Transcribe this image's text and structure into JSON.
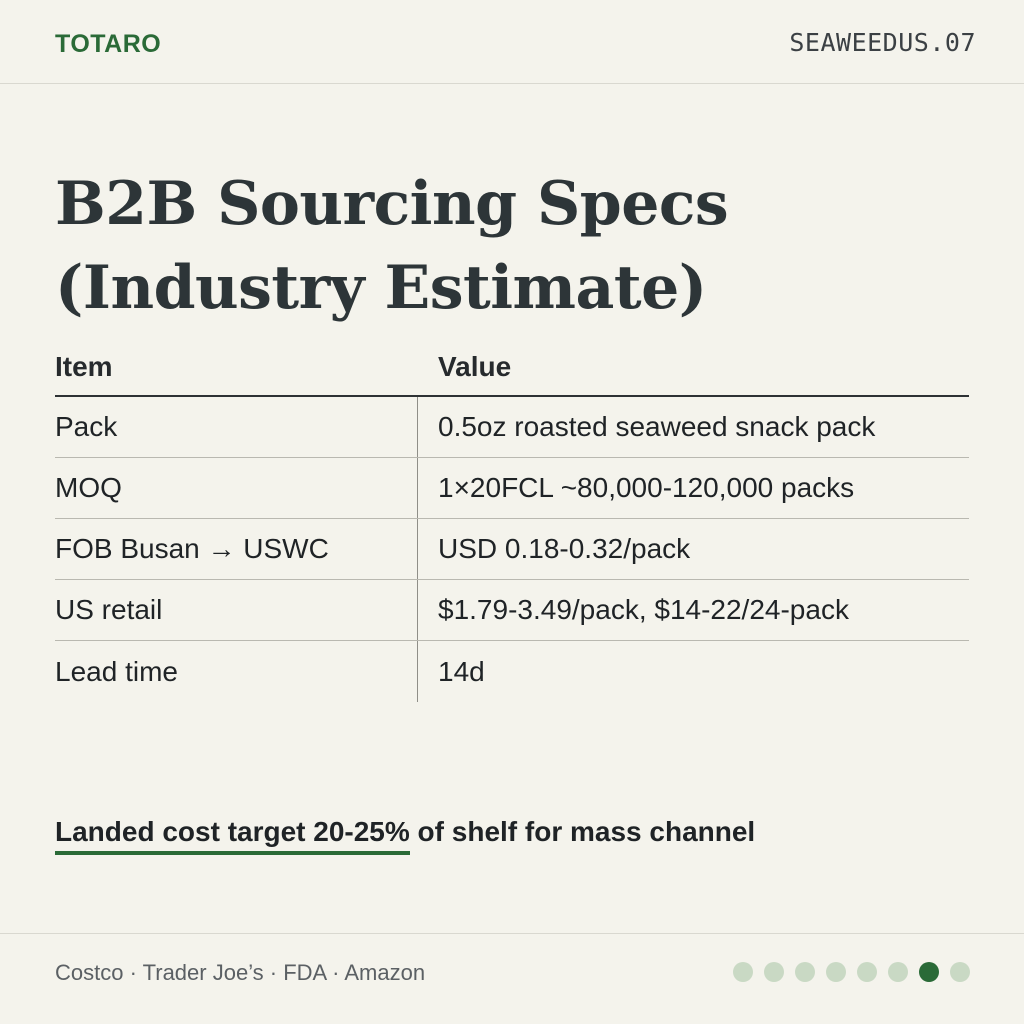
{
  "header": {
    "brand": "TOTARO",
    "slide_code": "SEAWEEDUS.07"
  },
  "title": {
    "line1": "B2B Sourcing Specs",
    "line2": "(Industry Estimate)"
  },
  "table": {
    "headers": [
      "Item",
      "Value"
    ],
    "rows": [
      {
        "item": "Pack",
        "value": "0.5oz roasted seaweed snack pack"
      },
      {
        "item": "MOQ",
        "value": "1×20FCL ~80,000-120,000 packs"
      },
      {
        "item": "FOB Busan → USWC",
        "value": "USD 0.18-0.32/pack"
      },
      {
        "item": "US retail",
        "value": "$1.79-3.49/pack, $14-22/24-pack"
      },
      {
        "item": "Lead time",
        "value": "14d"
      }
    ]
  },
  "note": {
    "highlight": "Landed cost target 20-25%",
    "rest": " of shelf for mass channel",
    "accent_color": "#2a6a37"
  },
  "footer": {
    "sources": "Costco · Trader Joe’s · FDA · Amazon",
    "pagination": {
      "total": 8,
      "current": 7
    }
  }
}
